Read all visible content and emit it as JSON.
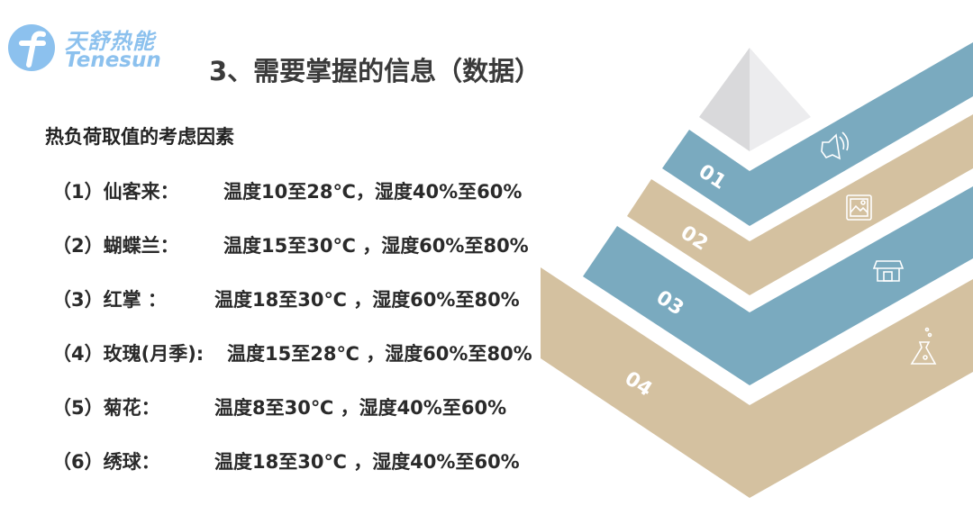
{
  "logo": {
    "chinese": "天舒热能",
    "english": "Tenesun",
    "color": "#8cc1ee"
  },
  "title": "3、需要掌握的信息（数据）",
  "subtitle": "热负荷取值的考虑因素",
  "rows": [
    {
      "label": "（1）仙客来：",
      "value": "温度10至28℃，湿度40%至60%"
    },
    {
      "label": "（2）蝴蝶兰：",
      "value": "温度15至30℃ ，湿度60%至80%"
    },
    {
      "label": "（3）红掌 ：",
      "value": "温度18至30℃ ，湿度60%至80%"
    },
    {
      "label": "（4）玫瑰(月季):",
      "value": "温度15至28℃ ，湿度60%至80%"
    },
    {
      "label": "（5）菊花：",
      "value": "温度8至30℃ ，湿度40%至60%"
    },
    {
      "label": "（6）绣球：",
      "value": "温度18至30℃ ，湿度40%至60%"
    }
  ],
  "pyramid": {
    "levels": [
      {
        "number": "01",
        "icon": "speaker-icon",
        "color": "#7aaabf"
      },
      {
        "number": "02",
        "icon": "picture-icon",
        "color": "#d4c1a0"
      },
      {
        "number": "03",
        "icon": "store-icon",
        "color": "#7aaabf"
      },
      {
        "number": "04",
        "icon": "flask-icon",
        "color": "#d4c1a0"
      }
    ]
  }
}
